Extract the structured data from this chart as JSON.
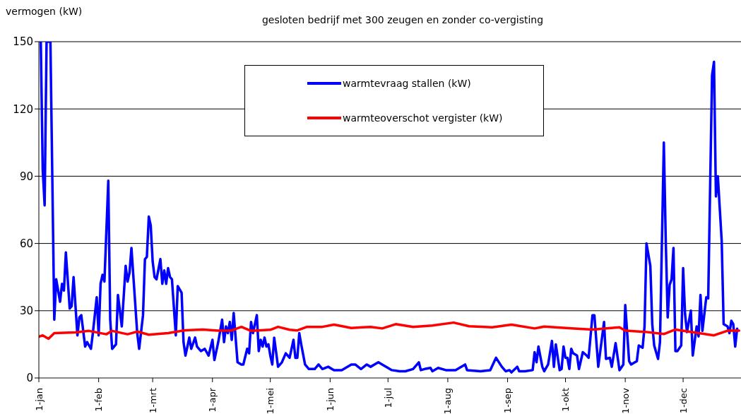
{
  "chart_data": {
    "type": "line",
    "title": "gesloten bedrijf met 300 zeugen en zonder co-vergisting",
    "ylabel": "vermogen (kW)",
    "xlim": [
      "--01-01",
      "--12-31"
    ],
    "xticks": [
      {
        "value": "--01-01",
        "label": "1-jan"
      },
      {
        "value": "--02-01",
        "label": "1-feb"
      },
      {
        "value": "--03-01",
        "label": "1-mrt"
      },
      {
        "value": "--04-01",
        "label": "1-apr"
      },
      {
        "value": "--05-01",
        "label": "1-mei"
      },
      {
        "value": "--06-01",
        "label": "1-jun"
      },
      {
        "value": "--07-01",
        "label": "1-jul"
      },
      {
        "value": "--08-01",
        "label": "1-aug"
      },
      {
        "value": "--09-01",
        "label": "1-sep"
      },
      {
        "value": "--10-01",
        "label": "1-okt"
      },
      {
        "value": "--11-01",
        "label": "1-nov"
      },
      {
        "value": "--12-01",
        "label": "1-dec"
      }
    ],
    "ylim": [
      0,
      150
    ],
    "yticks": [
      0,
      30,
      60,
      90,
      120,
      150
    ],
    "grid": "y",
    "legend": "top",
    "marker": "none",
    "line_style": "solid",
    "series": [
      {
        "name": "warmtevraag stallen (kW)",
        "color": "#0000ff",
        "x": [
          "--01-02",
          "--01-03",
          "--01-04",
          "--01-05",
          "--01-07",
          "--01-09",
          "--01-10",
          "--01-12",
          "--01-13",
          "--01-14",
          "--01-15",
          "--01-17",
          "--01-18",
          "--01-19",
          "--01-21",
          "--01-22",
          "--01-23",
          "--01-25",
          "--01-26",
          "--01-28",
          "--01-29",
          "--01-31",
          "--02-01",
          "--02-02",
          "--02-03",
          "--02-04",
          "--02-06",
          "--02-07",
          "--02-08",
          "--02-10",
          "--02-11",
          "--02-13",
          "--02-15",
          "--02-16",
          "--02-17",
          "--02-18",
          "--02-21",
          "--02-22",
          "--02-24",
          "--02-25",
          "--02-26",
          "--02-27",
          "--02-28",
          "--03-01",
          "--03-02",
          "--03-03",
          "--03-05",
          "--03-06",
          "--03-07",
          "--03-08",
          "--03-09",
          "--03-10",
          "--03-11",
          "--03-13",
          "--03-14",
          "--03-16",
          "--03-17",
          "--03-18",
          "--03-20",
          "--03-21",
          "--03-23",
          "--03-24",
          "--03-26",
          "--03-28",
          "--03-30",
          "--04-01",
          "--04-02",
          "--04-04",
          "--04-06",
          "--04-07",
          "--04-08",
          "--04-09",
          "--04-10",
          "--04-11",
          "--04-12",
          "--04-14",
          "--04-16",
          "--04-17",
          "--04-19",
          "--04-20",
          "--04-21",
          "--04-22",
          "--04-24",
          "--04-25",
          "--04-26",
          "--04-27",
          "--04-28",
          "--04-29",
          "--04-30",
          "--05-01",
          "--05-02",
          "--05-03",
          "--05-05",
          "--05-07",
          "--05-09",
          "--05-11",
          "--05-13",
          "--05-14",
          "--05-15",
          "--05-16",
          "--05-17",
          "--05-19",
          "--05-21",
          "--05-24",
          "--05-26",
          "--05-28",
          "--05-31",
          "--06-03",
          "--06-07",
          "--06-12",
          "--06-14",
          "--06-17",
          "--06-20",
          "--06-22",
          "--06-26",
          "--06-28",
          "--07-03",
          "--07-07",
          "--07-10",
          "--07-14",
          "--07-17",
          "--07-18",
          "--07-20",
          "--07-23",
          "--07-24",
          "--07-27",
          "--07-31",
          "--08-05",
          "--08-10",
          "--08-11",
          "--08-18",
          "--08-23",
          "--08-26",
          "--08-29",
          "--08-31",
          "--09-02",
          "--09-03",
          "--09-06",
          "--09-07",
          "--09-10",
          "--09-14",
          "--09-15",
          "--09-16",
          "--09-17",
          "--09-19",
          "--09-20",
          "--09-22",
          "--09-24",
          "--09-25",
          "--09-26",
          "--09-28",
          "--09-29",
          "--09-30",
          "--10-01",
          "--10-02",
          "--10-03",
          "--10-04",
          "--10-05",
          "--10-07",
          "--10-08",
          "--10-10",
          "--10-12",
          "--10-13",
          "--10-15",
          "--10-16",
          "--10-18",
          "--10-21",
          "--10-22",
          "--10-24",
          "--10-25",
          "--10-27",
          "--10-29",
          "--10-31",
          "--11-01",
          "--11-03",
          "--11-04",
          "--11-06",
          "--11-07",
          "--11-08",
          "--11-10",
          "--11-11",
          "--11-12",
          "--11-14",
          "--11-15",
          "--11-16",
          "--11-18",
          "--11-19",
          "--11-21",
          "--11-22",
          "--11-23",
          "--11-24",
          "--11-25",
          "--11-26",
          "--11-27",
          "--11-28",
          "--11-30",
          "--12-01",
          "--12-02",
          "--12-03",
          "--12-05",
          "--12-06",
          "--12-08",
          "--12-09",
          "--12-10",
          "--12-11",
          "--12-13",
          "--12-14",
          "--12-16",
          "--12-17",
          "--12-18",
          "--12-19",
          "--12-21",
          "--12-22",
          "--12-24",
          "--12-25",
          "--12-26",
          "--12-27",
          "--12-28",
          "--12-29"
        ],
        "values": [
          150,
          93,
          77,
          150,
          150,
          26,
          44,
          34,
          42,
          39,
          56,
          31,
          32,
          45,
          19,
          27,
          28,
          14,
          16,
          13,
          20,
          36,
          19,
          42,
          46,
          43,
          88,
          26,
          13,
          15,
          37,
          23,
          50,
          43,
          47,
          58,
          20,
          13,
          28,
          53,
          54,
          72,
          68,
          52,
          45,
          44,
          53,
          42,
          48,
          42,
          49,
          45,
          44,
          19,
          41,
          38,
          16,
          10,
          18,
          13,
          18,
          14,
          12,
          13,
          10,
          17,
          8,
          16,
          26,
          16,
          23,
          20,
          25,
          17,
          29,
          7,
          6,
          6,
          13,
          11,
          25,
          20,
          28,
          12,
          17,
          14,
          18,
          14,
          15,
          10,
          6,
          18,
          5,
          7,
          11,
          9,
          17,
          9,
          9,
          20,
          15,
          6,
          4,
          4,
          6,
          4,
          5,
          3.5,
          3.5,
          6,
          6,
          4,
          6,
          5,
          7,
          6,
          3.5,
          3,
          3,
          4,
          7,
          3.5,
          4,
          4.5,
          3,
          4.5,
          3.5,
          3.5,
          6,
          3.5,
          3,
          3.5,
          9,
          5,
          3,
          3.5,
          2.5,
          5,
          3,
          3,
          3.5,
          11.5,
          7,
          14,
          5,
          3,
          6,
          16.5,
          5,
          15,
          3.5,
          4,
          14,
          9,
          9,
          4,
          13,
          11,
          10,
          4,
          11.5,
          10,
          9,
          28,
          28,
          5,
          25,
          8.5,
          9,
          5,
          15.5,
          3.5,
          6,
          32.5,
          7.5,
          6,
          7,
          7.5,
          14.5,
          13.5,
          23,
          60,
          50,
          24,
          14.5,
          8.5,
          16,
          105,
          61,
          27,
          41.5,
          44,
          58,
          12,
          12,
          14.5,
          49,
          28.5,
          20.5,
          30,
          10,
          23,
          18.5,
          37,
          21,
          36,
          35.5,
          135,
          141,
          81,
          90,
          61,
          24,
          23,
          20,
          25.5,
          24,
          14,
          22
        ]
      },
      {
        "name": "warmteoverschot vergister (kW)",
        "color": "#ff0000",
        "x": [
          "--01-01",
          "--01-03",
          "--01-06",
          "--01-09",
          "--01-20",
          "--01-27",
          "--02-05",
          "--02-08",
          "--02-16",
          "--02-21",
          "--02-27",
          "--03-09",
          "--03-18",
          "--03-27",
          "--04-04",
          "--04-11",
          "--04-16",
          "--04-21",
          "--05-01",
          "--05-05",
          "--05-11",
          "--05-15",
          "--05-20",
          "--05-28",
          "--06-03",
          "--06-12",
          "--06-22",
          "--06-28",
          "--07-05",
          "--07-14",
          "--07-24",
          "--08-04",
          "--08-12",
          "--08-24",
          "--09-03",
          "--09-15",
          "--09-20",
          "--10-04",
          "--10-15",
          "--10-29",
          "--11-01",
          "--11-11",
          "--11-21",
          "--11-27",
          "--12-17",
          "--12-24",
          "--12-30"
        ],
        "values": [
          18.4,
          19,
          17.5,
          20,
          20.3,
          21,
          19.5,
          21,
          19.5,
          20.7,
          19.3,
          20,
          21.3,
          21.6,
          21.1,
          21.2,
          22.8,
          21,
          21.5,
          22.8,
          21.5,
          21.2,
          22.8,
          22.8,
          23.8,
          22.3,
          22.8,
          22.1,
          24,
          22.8,
          23.4,
          24.7,
          23.1,
          22.6,
          23.8,
          22.1,
          22.9,
          22.1,
          21.6,
          22.6,
          21.1,
          20.6,
          19.6,
          21.6,
          19,
          21.1,
          21.1
        ]
      }
    ]
  }
}
